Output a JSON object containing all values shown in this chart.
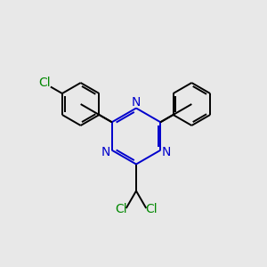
{
  "background_color": "#e8e8e8",
  "bond_color": "#000000",
  "triazine_color": "#0000cc",
  "cl_color": "#008800",
  "lw": 1.4,
  "font_size_N": 10,
  "font_size_Cl": 10,
  "xlim": [
    0,
    10
  ],
  "ylim": [
    0,
    10
  ]
}
